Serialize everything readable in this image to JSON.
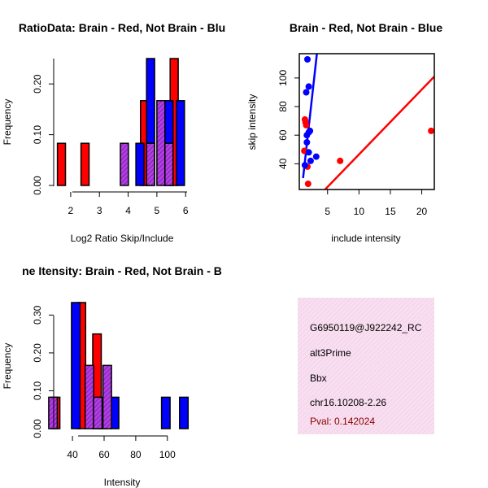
{
  "chart_data": [
    {
      "type": "bar",
      "title": "RatioData: Brain - Red, Not Brain - Blu",
      "xlabel": "Log2 Ratio Skip/Include",
      "ylabel": "Frequency",
      "xlim": [
        1.55,
        6.05
      ],
      "ylim": [
        0,
        0.25
      ],
      "xticks": [
        "2",
        "3",
        "4",
        "5",
        "6"
      ],
      "yticks": [
        "0.00",
        "0.10",
        "0.20"
      ],
      "bin_width": 0.28,
      "series": [
        {
          "name": "Brain",
          "color": "#ff0000",
          "bins": [
            {
              "x": 1.68,
              "value": 0.083
            },
            {
              "x": 2.5,
              "value": 0.083
            },
            {
              "x": 4.57,
              "value": 0.167
            },
            {
              "x": 5.6,
              "value": 0.25
            }
          ]
        },
        {
          "name": "Not Brain",
          "color": "#0000ff",
          "bins": [
            {
              "x": 4.41,
              "value": 0.083
            },
            {
              "x": 4.78,
              "value": 0.25
            },
            {
              "x": 5.42,
              "value": 0.167
            },
            {
              "x": 5.82,
              "value": 0.167
            }
          ]
        },
        {
          "name": "Overlap",
          "color": "#a020f0",
          "bins": [
            {
              "x": 3.87,
              "value": 0.083
            },
            {
              "x": 4.78,
              "value": 0.083
            },
            {
              "x": 5.14,
              "value": 0.167
            },
            {
              "x": 5.42,
              "value": 0.083
            }
          ]
        }
      ]
    },
    {
      "type": "scatter",
      "title": "Brain - Red, Not Brain - Blue",
      "xlabel": "include intensity",
      "ylabel": "skip intensity",
      "xlim": [
        0.5,
        22
      ],
      "ylim": [
        22,
        117
      ],
      "xticks": [
        "5",
        "10",
        "15",
        "20"
      ],
      "yticks": [
        "40",
        "60",
        "80",
        "100"
      ],
      "series": [
        {
          "name": "Brain",
          "color": "#ff0000",
          "points": [
            [
              1.4,
              71
            ],
            [
              1.5,
              69
            ],
            [
              1.6,
              67
            ],
            [
              1.3,
              49
            ],
            [
              1.8,
              38
            ],
            [
              1.9,
              26
            ],
            [
              7.0,
              42
            ],
            [
              21.5,
              63
            ]
          ],
          "fit": [
            [
              4.6,
              22
            ],
            [
              22,
              101
            ]
          ]
        },
        {
          "name": "Not Brain",
          "color": "#0000ff",
          "points": [
            [
              1.8,
              113
            ],
            [
              2.0,
              94
            ],
            [
              1.6,
              90
            ],
            [
              1.7,
              60
            ],
            [
              2.2,
              63
            ],
            [
              2.0,
              62
            ],
            [
              1.7,
              55
            ],
            [
              2.0,
              48
            ],
            [
              2.3,
              42
            ],
            [
              3.2,
              45
            ],
            [
              1.4,
              39
            ]
          ],
          "fit": [
            [
              1.1,
              30
            ],
            [
              3.3,
              117
            ]
          ]
        }
      ]
    },
    {
      "type": "bar",
      "title": "ne Itensity: Brain - Red, Not Brain - B",
      "xlabel": "Intensity",
      "ylabel": "Frequency",
      "xlim": [
        24,
        114
      ],
      "ylim": [
        0,
        0.333
      ],
      "xticks": [
        "40",
        "60",
        "80",
        "100"
      ],
      "yticks": [
        "0.00",
        "0.10",
        "0.20",
        "0.30"
      ],
      "bin_width": 5.4,
      "series": [
        {
          "name": "Brain",
          "color": "#ff0000",
          "bins": [
            {
              "x": 29.3,
              "value": 0.083
            },
            {
              "x": 45.6,
              "value": 0.333
            },
            {
              "x": 55.5,
              "value": 0.25
            },
            {
              "x": 59.3,
              "value": 0.083
            }
          ]
        },
        {
          "name": "Not Brain",
          "color": "#0000ff",
          "bins": [
            {
              "x": 42.1,
              "value": 0.333
            },
            {
              "x": 66.6,
              "value": 0.083
            },
            {
              "x": 99.0,
              "value": 0.083
            },
            {
              "x": 110.4,
              "value": 0.083
            }
          ]
        },
        {
          "name": "Overlap",
          "color": "#a020f0",
          "bins": [
            {
              "x": 27.7,
              "value": 0.083
            },
            {
              "x": 50.7,
              "value": 0.167
            },
            {
              "x": 56.0,
              "value": 0.083
            },
            {
              "x": 62.0,
              "value": 0.167
            }
          ]
        }
      ]
    }
  ],
  "info_panel": {
    "id": "G6950119@J922242_RC",
    "event_type": "alt3Prime",
    "gene": "Bbx",
    "location": "chr16.10208-2.26",
    "pval": "Pval: 0.142024"
  }
}
